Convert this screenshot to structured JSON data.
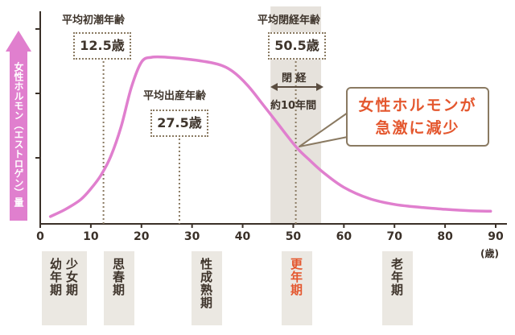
{
  "chart_data": {
    "type": "line",
    "title": "",
    "xlabel": "(歳)",
    "ylabel": "女性ホルモン（エストロゲン）量",
    "xlim": [
      0,
      90
    ],
    "ylim": [
      0,
      4
    ],
    "x_ticks": [
      0,
      10,
      20,
      30,
      40,
      50,
      60,
      70,
      80,
      90
    ],
    "grid": false,
    "series": [
      {
        "name": "女性ホルモン（エストロゲン）量",
        "color": "#e07fce",
        "points": [
          [
            2,
            0.15
          ],
          [
            5,
            0.3
          ],
          [
            8,
            0.5
          ],
          [
            10,
            0.72
          ],
          [
            12,
            1.0
          ],
          [
            14,
            1.4
          ],
          [
            16,
            2.0
          ],
          [
            18,
            2.8
          ],
          [
            20,
            3.32
          ],
          [
            22,
            3.42
          ],
          [
            25,
            3.42
          ],
          [
            30,
            3.37
          ],
          [
            35,
            3.28
          ],
          [
            38,
            3.13
          ],
          [
            41,
            2.84
          ],
          [
            44,
            2.45
          ],
          [
            47,
            2.05
          ],
          [
            49,
            1.78
          ],
          [
            51,
            1.53
          ],
          [
            53,
            1.33
          ],
          [
            56,
            1.05
          ],
          [
            60,
            0.75
          ],
          [
            65,
            0.52
          ],
          [
            70,
            0.4
          ],
          [
            75,
            0.34
          ],
          [
            80,
            0.3
          ],
          [
            85,
            0.27
          ],
          [
            89,
            0.26
          ]
        ]
      }
    ],
    "markers": [
      {
        "label": "平均初潮年齢",
        "value_label": "12.5歳",
        "x": 12.5
      },
      {
        "label": "平均出産年齢",
        "value_label": "27.5歳",
        "x": 27.5
      },
      {
        "label": "平均閉経年齢",
        "value_label": "50.5歳",
        "x": 50.5
      }
    ],
    "band": {
      "from": 45.5,
      "to": 55.5,
      "label_top": "閉 経",
      "label_bottom": "約10年間"
    },
    "annotation": {
      "line1": "女性ホルモンが",
      "line2": "急激に減少"
    }
  },
  "stages": [
    {
      "cols": [
        "幼年期",
        "少女期"
      ],
      "accent": false
    },
    {
      "cols": [
        "思春期"
      ],
      "accent": false
    },
    {
      "cols": [
        "性成熟期"
      ],
      "accent": false
    },
    {
      "cols": [
        "更年期"
      ],
      "accent": true
    },
    {
      "cols": [
        "老年期"
      ],
      "accent": false
    }
  ],
  "colors": {
    "curve": "#e07fce",
    "accent": "#e4572e",
    "band": "#e6e2dc",
    "marker": "#8a7a62"
  }
}
